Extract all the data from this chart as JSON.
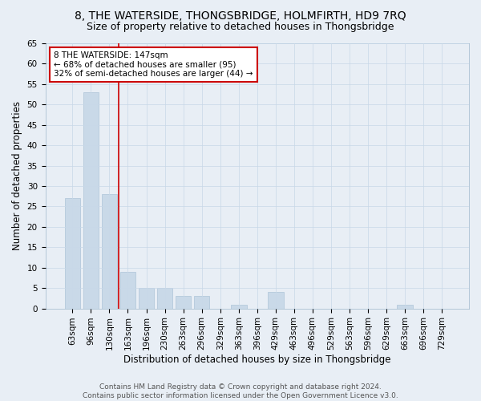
{
  "title": "8, THE WATERSIDE, THONGSBRIDGE, HOLMFIRTH, HD9 7RQ",
  "subtitle": "Size of property relative to detached houses in Thongsbridge",
  "xlabel": "Distribution of detached houses by size in Thongsbridge",
  "ylabel": "Number of detached properties",
  "categories": [
    "63sqm",
    "96sqm",
    "130sqm",
    "163sqm",
    "196sqm",
    "230sqm",
    "263sqm",
    "296sqm",
    "329sqm",
    "363sqm",
    "396sqm",
    "429sqm",
    "463sqm",
    "496sqm",
    "529sqm",
    "563sqm",
    "596sqm",
    "629sqm",
    "663sqm",
    "696sqm",
    "729sqm"
  ],
  "values": [
    27,
    53,
    28,
    9,
    5,
    5,
    3,
    3,
    0,
    1,
    0,
    4,
    0,
    0,
    0,
    0,
    0,
    0,
    1,
    0,
    0
  ],
  "bar_color": "#c9d9e8",
  "bar_edge_color": "#adc4d8",
  "vline_x": 2.5,
  "vline_color": "#cc0000",
  "annotation_box_text": "8 THE WATERSIDE: 147sqm\n← 68% of detached houses are smaller (95)\n32% of semi-detached houses are larger (44) →",
  "annotation_box_color": "#cc0000",
  "ylim": [
    0,
    65
  ],
  "yticks": [
    0,
    5,
    10,
    15,
    20,
    25,
    30,
    35,
    40,
    45,
    50,
    55,
    60,
    65
  ],
  "grid_color": "#c8d8e8",
  "background_color": "#e8eef5",
  "fig_background_color": "#e8eef5",
  "footer_text": "Contains HM Land Registry data © Crown copyright and database right 2024.\nContains public sector information licensed under the Open Government Licence v3.0.",
  "title_fontsize": 10,
  "subtitle_fontsize": 9,
  "xlabel_fontsize": 8.5,
  "ylabel_fontsize": 8.5,
  "tick_fontsize": 7.5,
  "annot_fontsize": 7.5,
  "footer_fontsize": 6.5
}
